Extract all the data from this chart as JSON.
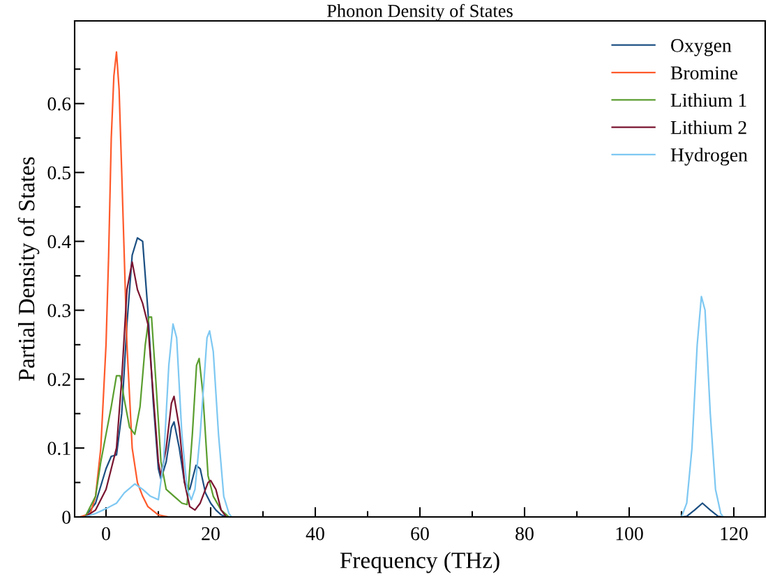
{
  "chart_data": {
    "type": "line",
    "title": "Phonon Density of States",
    "xlabel": "Frequency (THz)",
    "ylabel": "Partial Density of States",
    "xlim": [
      -6,
      126
    ],
    "ylim": [
      0,
      0.72
    ],
    "xticks": [
      0,
      {
        "value": 10,
        "label": null
      },
      20,
      {
        "value": 30,
        "label": null
      },
      40,
      {
        "value": 50,
        "label": null
      },
      60,
      {
        "value": 70,
        "label": null
      },
      80,
      {
        "value": 90,
        "label": null
      },
      100,
      {
        "value": 110,
        "label": null
      },
      120
    ],
    "yticks": [
      0,
      {
        "value": 0.05,
        "label": null
      },
      0.1,
      {
        "value": 0.15,
        "label": null
      },
      0.2,
      {
        "value": 0.25,
        "label": null
      },
      0.3,
      {
        "value": 0.35,
        "label": null
      },
      0.4,
      {
        "value": 0.45,
        "label": null
      },
      0.5,
      {
        "value": 0.55,
        "label": null
      },
      0.6,
      {
        "value": 0.65,
        "label": null
      }
    ],
    "grid": false,
    "legend": "top right",
    "marker": "none",
    "line_style": "solid",
    "series": [
      {
        "name": "Oxygen",
        "color": "#1b4f82",
        "x": [
          -4,
          -2,
          0,
          1,
          2,
          3,
          4,
          5,
          6,
          7,
          8,
          9,
          10,
          10.5,
          11.5,
          12.5,
          13,
          14,
          15,
          16,
          17.2,
          18,
          19,
          20,
          21,
          22,
          23,
          110,
          111,
          112.5,
          114,
          115.5,
          117,
          118
        ],
        "values": [
          0,
          0.02,
          0.07,
          0.088,
          0.09,
          0.15,
          0.28,
          0.38,
          0.405,
          0.4,
          0.3,
          0.17,
          0.07,
          0.055,
          0.08,
          0.13,
          0.138,
          0.1,
          0.05,
          0.04,
          0.075,
          0.07,
          0.035,
          0.02,
          0.01,
          0.003,
          0,
          0,
          0.001,
          0.01,
          0.02,
          0.01,
          0.001,
          0
        ]
      },
      {
        "name": "Bromine",
        "color": "#ff5a2b",
        "x": [
          -5,
          -3,
          -2,
          -1,
          0,
          0.5,
          1,
          1.5,
          2,
          2.5,
          3,
          4,
          5,
          6,
          7,
          8,
          10,
          12
        ],
        "values": [
          0,
          0.005,
          0.03,
          0.1,
          0.25,
          0.38,
          0.55,
          0.64,
          0.675,
          0.62,
          0.5,
          0.25,
          0.1,
          0.05,
          0.03,
          0.015,
          0.003,
          0
        ]
      },
      {
        "name": "Lithium 1",
        "color": "#5a9e2f",
        "x": [
          -4,
          -2,
          -1,
          0,
          1,
          2,
          2.7,
          3.5,
          4.5,
          5.5,
          6.5,
          7.5,
          8.2,
          8.7,
          9.5,
          10.5,
          11.5,
          13,
          14.5,
          15.5,
          16.5,
          17.3,
          17.8,
          18.5,
          19.5,
          20.5,
          22,
          23.5
        ],
        "values": [
          0,
          0.03,
          0.08,
          0.12,
          0.16,
          0.205,
          0.205,
          0.17,
          0.13,
          0.12,
          0.16,
          0.25,
          0.29,
          0.29,
          0.2,
          0.08,
          0.04,
          0.03,
          0.02,
          0.018,
          0.12,
          0.22,
          0.23,
          0.18,
          0.06,
          0.03,
          0.01,
          0
        ]
      },
      {
        "name": "Lithium 2",
        "color": "#7a1530",
        "x": [
          -4,
          -2,
          0,
          1,
          2,
          3,
          4,
          5,
          6,
          7,
          8,
          9,
          10,
          10.5,
          11.5,
          12.5,
          13,
          14,
          15,
          16,
          17,
          18,
          19.5,
          20,
          21,
          22,
          23
        ],
        "values": [
          0,
          0.01,
          0.04,
          0.07,
          0.1,
          0.2,
          0.33,
          0.37,
          0.33,
          0.31,
          0.28,
          0.18,
          0.08,
          0.06,
          0.1,
          0.165,
          0.175,
          0.13,
          0.05,
          0.015,
          0.01,
          0.02,
          0.05,
          0.053,
          0.04,
          0.01,
          0
        ]
      },
      {
        "name": "Hydrogen",
        "color": "#7ec8f2",
        "x": [
          -4,
          -2,
          0,
          2,
          3.5,
          5.5,
          7,
          8.5,
          10,
          11,
          12,
          12.8,
          13.5,
          14.5,
          15.5,
          16.3,
          17,
          18,
          19.3,
          19.8,
          20.5,
          21.5,
          22.5,
          23.5,
          24,
          110,
          111,
          112,
          113,
          113.8,
          114.5,
          115.5,
          116.5,
          117.5,
          118
        ],
        "values": [
          0,
          0.005,
          0.012,
          0.02,
          0.035,
          0.048,
          0.04,
          0.03,
          0.025,
          0.08,
          0.22,
          0.28,
          0.26,
          0.12,
          0.04,
          0.025,
          0.04,
          0.12,
          0.26,
          0.27,
          0.24,
          0.12,
          0.03,
          0.005,
          0,
          0,
          0.02,
          0.1,
          0.25,
          0.32,
          0.3,
          0.15,
          0.04,
          0.005,
          0
        ]
      }
    ]
  }
}
